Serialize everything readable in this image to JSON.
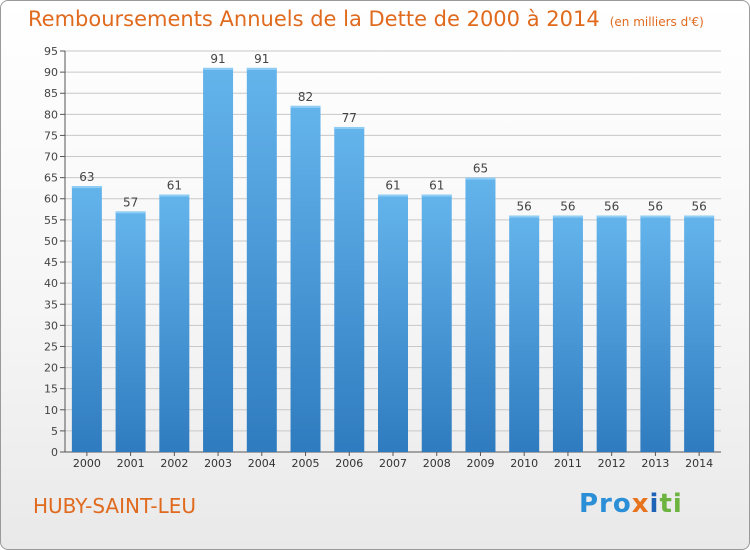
{
  "header": {
    "title": "Remboursements Annuels de la Dette de 2000 à 2014",
    "unit_note": "(en milliers d'€)"
  },
  "footer": {
    "city": "HUBY-SAINT-LEU",
    "logo_parts": [
      "Pro",
      "x",
      "i",
      "ti"
    ]
  },
  "colors": {
    "bar_light": "#64b4ec",
    "bar_dark": "#2f7bbf",
    "title": "#e06a1e",
    "grid": "#c8c8c8"
  },
  "chart_data": {
    "type": "bar",
    "title": "Remboursements Annuels de la Dette de 2000 à 2014",
    "subtitle": "(en milliers d'€)",
    "categories": [
      "2000",
      "2001",
      "2002",
      "2003",
      "2004",
      "2005",
      "2006",
      "2007",
      "2008",
      "2009",
      "2010",
      "2011",
      "2012",
      "2013",
      "2014"
    ],
    "values": [
      63,
      57,
      61,
      91,
      91,
      82,
      77,
      61,
      61,
      65,
      56,
      56,
      56,
      56,
      56
    ],
    "yticks": [
      0,
      5,
      10,
      15,
      20,
      25,
      30,
      35,
      40,
      45,
      50,
      55,
      60,
      65,
      70,
      75,
      80,
      85,
      90,
      95
    ],
    "ylim": [
      0,
      95
    ],
    "grid": true,
    "legend": "none"
  }
}
